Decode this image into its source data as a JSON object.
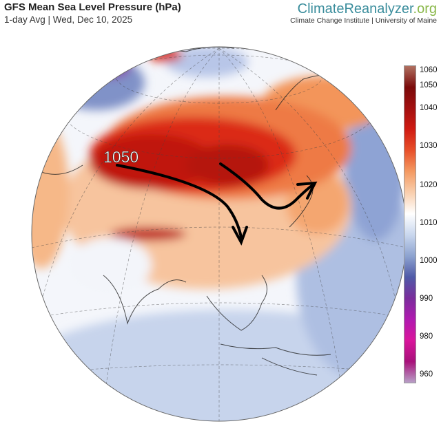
{
  "header": {
    "title": "GFS Mean Sea Level Pressure (hPa)",
    "subtitle": "1-day Avg | Wed, Dec 10, 2025"
  },
  "brand": {
    "name_part1": "ClimateReanalyzer",
    "name_part2": ".org",
    "tagline": "Climate Change Institute | University of Maine"
  },
  "annotation": {
    "label": "1050"
  },
  "colorbar": {
    "ticks": [
      "1060",
      "1050",
      "1040",
      "1030",
      "1020",
      "1010",
      "1000",
      "990",
      "980",
      "960"
    ],
    "colors": [
      "#b07060",
      "#7a0a0a",
      "#a31010",
      "#d01b12",
      "#e8502a",
      "#f49a62",
      "#f9cfae",
      "#ffffff",
      "#c9d7ee",
      "#8da3d0",
      "#4f5aa8",
      "#7a2d9c",
      "#b01ab0",
      "#d9159c",
      "#a8107a",
      "#b89fc7"
    ]
  }
}
